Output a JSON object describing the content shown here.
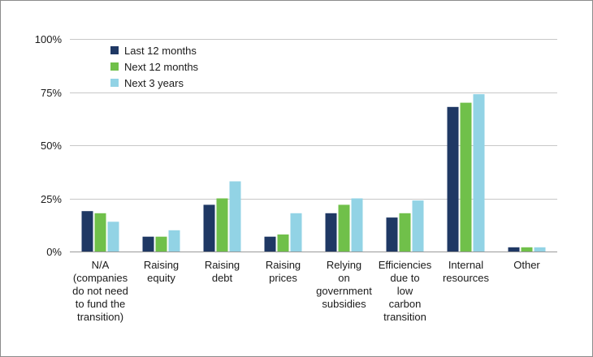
{
  "chart_data": {
    "type": "bar",
    "categories": [
      [
        "N/A",
        "(companies",
        "do not need",
        "to fund the",
        "transition)"
      ],
      [
        "Raising",
        "equity"
      ],
      [
        "Raising",
        "debt"
      ],
      [
        "Raising",
        "prices"
      ],
      [
        "Relying",
        "on",
        "government",
        "subsidies"
      ],
      [
        "Efficiencies",
        "due to",
        "low",
        "carbon",
        "transition"
      ],
      [
        "Internal",
        "resources"
      ],
      [
        "Other"
      ]
    ],
    "series": [
      {
        "name": "Last 12 months",
        "color": "#1f3864",
        "values": [
          19,
          7,
          22,
          7,
          18,
          16,
          68,
          2
        ]
      },
      {
        "name": "Next 12 months",
        "color": "#70c04a",
        "values": [
          18,
          7,
          25,
          8,
          22,
          18,
          70,
          2
        ]
      },
      {
        "name": "Next 3 years",
        "color": "#92d3e5",
        "values": [
          14,
          10,
          33,
          18,
          25,
          24,
          74,
          2
        ]
      }
    ],
    "ylim": [
      0,
      100
    ],
    "yticks": [
      {
        "value": 0,
        "label": "0%"
      },
      {
        "value": 25,
        "label": "25%"
      },
      {
        "value": 50,
        "label": "50%"
      },
      {
        "value": 75,
        "label": "75%"
      },
      {
        "value": 100,
        "label": "100%"
      }
    ],
    "grid": true,
    "legend_position": "top-left"
  }
}
